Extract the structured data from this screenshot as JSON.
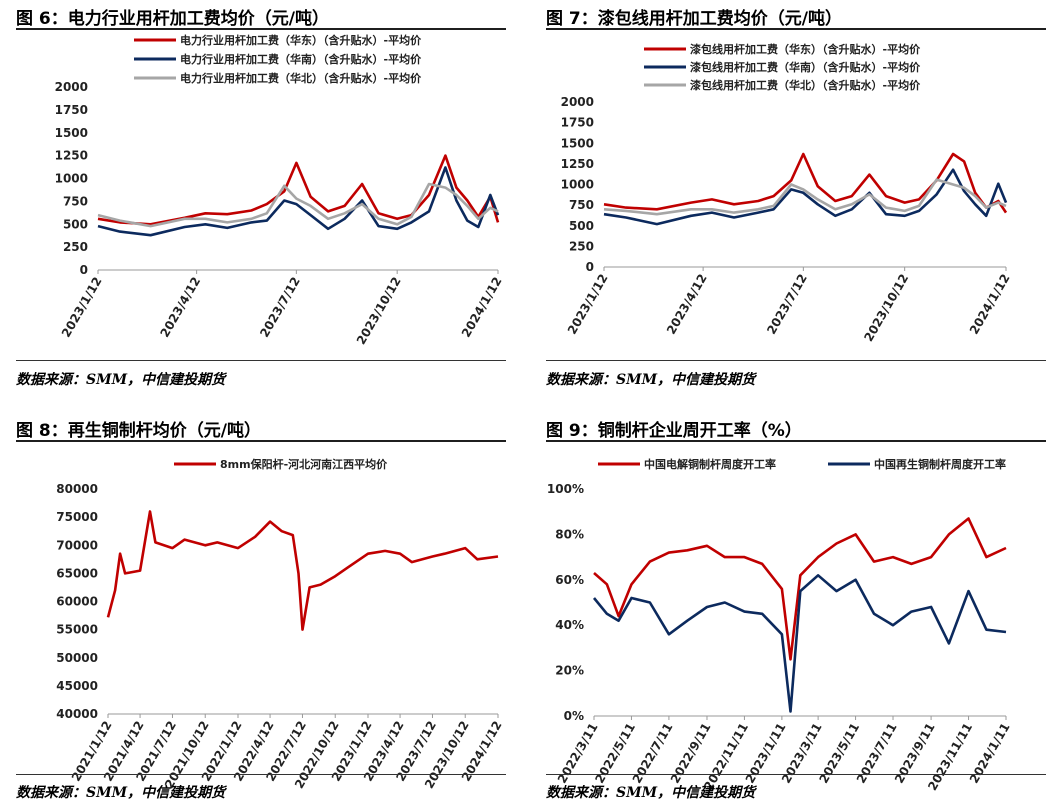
{
  "charts": [
    {
      "title": "图 6：电力行业用杆加工费均价（元/吨）",
      "source": "数据来源：SMM，中信建投期货",
      "chart_data": {
        "type": "line",
        "title": "",
        "xlabel": "",
        "ylabel": "",
        "ylim": [
          0,
          2000
        ],
        "yticks": [
          "0",
          "250",
          "500",
          "750",
          "1000",
          "1250",
          "1500",
          "1750",
          "2000"
        ],
        "xticks": [
          "2023/1/12",
          "2023/4/12",
          "2023/7/12",
          "2023/10/12",
          "2024/1/12"
        ],
        "x": [
          "2023/1/12",
          "2023/2/1",
          "2023/3/1",
          "2023/4/1",
          "2023/4/20",
          "2023/5/10",
          "2023/6/1",
          "2023/6/15",
          "2023/7/1",
          "2023/7/12",
          "2023/7/25",
          "2023/8/10",
          "2023/8/25",
          "2023/9/10",
          "2023/9/25",
          "2023/10/12",
          "2023/10/25",
          "2023/11/10",
          "2023/11/25",
          "2023/12/5",
          "2023/12/15",
          "2023/12/25",
          "2024/1/5",
          "2024/1/12"
        ],
        "legend_position": "top",
        "series": [
          {
            "name": "电力行业用杆加工费（华东）（含升贴水）-平均价",
            "color": "#c00000",
            "values": [
              560,
              520,
              500,
              570,
              620,
              610,
              650,
              720,
              860,
              1170,
              800,
              640,
              700,
              940,
              620,
              560,
              600,
              820,
              1250,
              900,
              760,
              580,
              800,
              520
            ]
          },
          {
            "name": "电力行业用杆加工费（华南）（含升贴水）-平均价",
            "color": "#0c2a5e",
            "values": [
              480,
              420,
              380,
              470,
              500,
              460,
              520,
              540,
              760,
              720,
              600,
              450,
              560,
              760,
              480,
              450,
              520,
              640,
              1120,
              760,
              540,
              470,
              820,
              600
            ]
          },
          {
            "name": "电力行业用杆加工费（华北）（含升贴水）-平均价",
            "color": "#a6a6a6",
            "values": [
              600,
              540,
              480,
              560,
              560,
              520,
              560,
              620,
              920,
              780,
              700,
              560,
              620,
              720,
              560,
              500,
              580,
              940,
              900,
              820,
              700,
              560,
              680,
              640
            ]
          }
        ]
      }
    },
    {
      "title": "图 7：漆包线用杆加工费均价（元/吨）",
      "source": "数据来源：SMM，中信建投期货",
      "chart_data": {
        "type": "line",
        "title": "",
        "xlabel": "",
        "ylabel": "",
        "ylim": [
          0,
          2000
        ],
        "yticks": [
          "0",
          "250",
          "500",
          "750",
          "1000",
          "1250",
          "1500",
          "1750",
          "2000"
        ],
        "xticks": [
          "2023/1/12",
          "2023/4/12",
          "2023/7/12",
          "2023/10/12",
          "2024/1/12"
        ],
        "x": [
          "2023/1/12",
          "2023/2/1",
          "2023/3/1",
          "2023/4/1",
          "2023/4/20",
          "2023/5/10",
          "2023/6/1",
          "2023/6/15",
          "2023/7/1",
          "2023/7/12",
          "2023/7/25",
          "2023/8/10",
          "2023/8/25",
          "2023/9/10",
          "2023/9/25",
          "2023/10/12",
          "2023/10/25",
          "2023/11/10",
          "2023/11/25",
          "2023/12/5",
          "2023/12/15",
          "2023/12/25",
          "2024/1/5",
          "2024/1/12"
        ],
        "legend_position": "top",
        "series": [
          {
            "name": "漆包线用杆加工费（华东）（含升贴水）-平均价",
            "color": "#c00000",
            "values": [
              760,
              720,
              700,
              780,
              820,
              760,
              800,
              860,
              1050,
              1370,
              980,
              800,
              860,
              1120,
              860,
              780,
              820,
              1050,
              1370,
              1280,
              900,
              720,
              800,
              660
            ]
          },
          {
            "name": "漆包线用杆加工费（华南）（含升贴水）-平均价",
            "color": "#0c2a5e",
            "values": [
              640,
              600,
              520,
              620,
              660,
              600,
              660,
              700,
              940,
              900,
              760,
              620,
              700,
              900,
              640,
              620,
              680,
              880,
              1180,
              920,
              760,
              620,
              1010,
              780
            ]
          },
          {
            "name": "漆包线用杆加工费（华北）（含升贴水）-平均价",
            "color": "#a6a6a6",
            "values": [
              700,
              680,
              640,
              700,
              700,
              660,
              700,
              740,
              1000,
              940,
              820,
              700,
              760,
              880,
              720,
              680,
              740,
              1060,
              1000,
              960,
              860,
              720,
              780,
              740
            ]
          }
        ]
      }
    },
    {
      "title": "图 8：再生铜制杆均价（元/吨）",
      "source": "数据来源：SMM，中信建投期货",
      "chart_data": {
        "type": "line",
        "title": "",
        "xlabel": "",
        "ylabel": "",
        "ylim": [
          40000,
          80000
        ],
        "yticks": [
          "40000",
          "45000",
          "50000",
          "55000",
          "60000",
          "65000",
          "70000",
          "75000",
          "80000"
        ],
        "xticks": [
          "2021/1/12",
          "2021/4/12",
          "2021/7/12",
          "2021/10/12",
          "2022/1/12",
          "2022/4/12",
          "2022/7/12",
          "2022/10/12",
          "2023/1/12",
          "2023/4/12",
          "2023/7/12",
          "2023/10/12",
          "2024/1/12"
        ],
        "x": [
          "2021/1/12",
          "2021/2/1",
          "2021/2/15",
          "2021/3/1",
          "2021/4/12",
          "2021/5/10",
          "2021/5/25",
          "2021/7/12",
          "2021/8/15",
          "2021/10/12",
          "2021/11/15",
          "2022/1/12",
          "2022/3/1",
          "2022/4/12",
          "2022/5/15",
          "2022/6/15",
          "2022/7/1",
          "2022/7/12",
          "2022/8/1",
          "2022/9/1",
          "2022/10/12",
          "2022/11/15",
          "2023/1/12",
          "2023/3/1",
          "2023/4/12",
          "2023/5/15",
          "2023/7/12",
          "2023/8/15",
          "2023/10/12",
          "2023/11/15",
          "2024/1/12"
        ],
        "legend_position": "top",
        "series": [
          {
            "name": "8mm保阳杆-河北河南江西平均价",
            "color": "#c00000",
            "values": [
              57200,
              62000,
              68500,
              65000,
              65500,
              76000,
              70500,
              69500,
              71000,
              70000,
              70500,
              69500,
              71500,
              74200,
              72500,
              71800,
              65000,
              55000,
              62500,
              63000,
              64500,
              66000,
              68500,
              69000,
              68500,
              67000,
              68000,
              68500,
              69500,
              67500,
              68000
            ]
          }
        ]
      }
    },
    {
      "title": "图 9：铜制杆企业周开工率（%）",
      "source": "数据来源：SMM，中信建投期货",
      "chart_data": {
        "type": "line",
        "title": "",
        "xlabel": "",
        "ylabel": "",
        "ylim": [
          0,
          100
        ],
        "yticks": [
          "0%",
          "20%",
          "40%",
          "60%",
          "80%",
          "100%"
        ],
        "xticks": [
          "2022/3/11",
          "2022/5/11",
          "2022/7/11",
          "2022/9/11",
          "2022/11/11",
          "2023/1/11",
          "2023/3/11",
          "2023/5/11",
          "2023/7/11",
          "2023/9/11",
          "2023/11/11",
          "2024/1/11"
        ],
        "x": [
          "2022/3/11",
          "2022/4/1",
          "2022/4/20",
          "2022/5/11",
          "2022/6/10",
          "2022/7/11",
          "2022/8/10",
          "2022/9/11",
          "2022/10/10",
          "2022/11/11",
          "2022/12/10",
          "2023/1/11",
          "2023/1/25",
          "2023/2/10",
          "2023/3/11",
          "2023/4/10",
          "2023/5/11",
          "2023/6/10",
          "2023/7/11",
          "2023/8/10",
          "2023/9/11",
          "2023/10/10",
          "2023/11/11",
          "2023/12/10",
          "2024/1/11"
        ],
        "legend_position": "top",
        "series": [
          {
            "name": "中国电解铜制杆周度开工率",
            "color": "#c00000",
            "values": [
              63,
              58,
              44,
              58,
              68,
              72,
              73,
              75,
              70,
              70,
              67,
              56,
              25,
              62,
              70,
              76,
              80,
              68,
              70,
              67,
              70,
              80,
              87,
              70,
              74
            ]
          },
          {
            "name": "中国再生铜制杆周度开工率",
            "color": "#0c2a5e",
            "values": [
              52,
              45,
              42,
              52,
              50,
              36,
              42,
              48,
              50,
              46,
              45,
              36,
              2,
              55,
              62,
              55,
              60,
              45,
              40,
              46,
              48,
              32,
              55,
              38,
              37
            ]
          }
        ]
      }
    }
  ]
}
